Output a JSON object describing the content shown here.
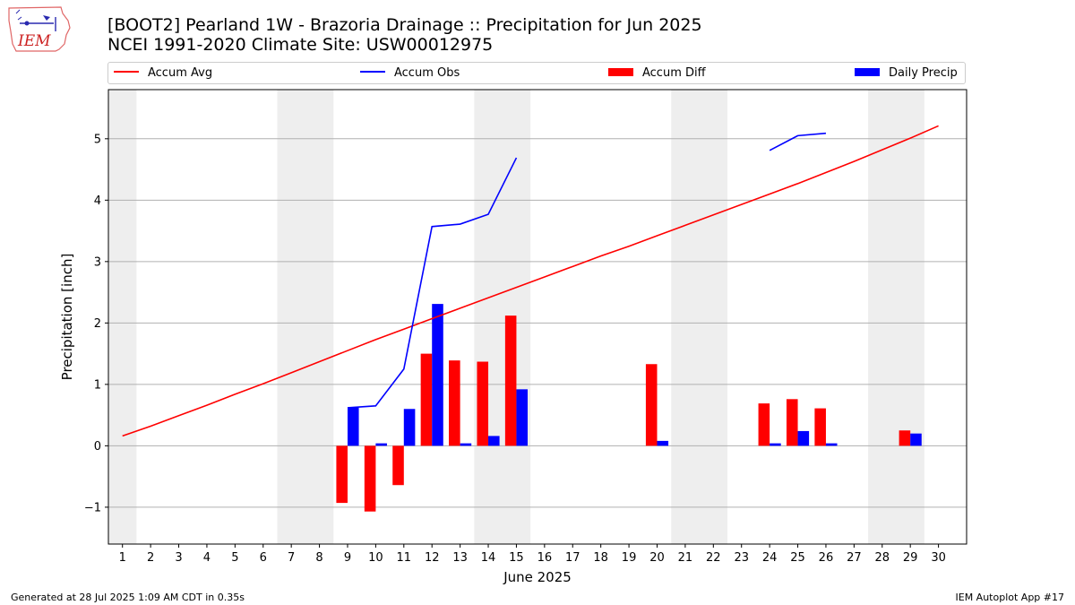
{
  "header": {
    "title_line1": "[BOOT2] Pearland 1W - Brazoria Drainage :: Precipitation for Jun 2025",
    "title_line2": "NCEI 1991-2020 Climate Site: USW00012975",
    "logo_text": "IEM"
  },
  "footer": {
    "generated": "Generated at 28 Jul 2025 1:09 AM CDT in 0.35s",
    "app": "IEM Autoplot App #17"
  },
  "colors": {
    "avg": "#ff0000",
    "obs": "#0000ff",
    "diff": "#ff0000",
    "daily": "#0000ff",
    "weekend_shade": "#eeeeee",
    "grid": "#b0b0b0"
  },
  "chart_data": {
    "type": "bar",
    "xlabel": "June 2025",
    "ylabel": "Precipitation [inch]",
    "xlim": [
      0.5,
      31
    ],
    "ylim": [
      -1.6,
      5.8
    ],
    "yticks": [
      -1,
      0,
      1,
      2,
      3,
      4,
      5
    ],
    "ytick_labels": [
      "−1",
      "0",
      "1",
      "2",
      "3",
      "4",
      "5"
    ],
    "days": [
      1,
      2,
      3,
      4,
      5,
      6,
      7,
      8,
      9,
      10,
      11,
      12,
      13,
      14,
      15,
      16,
      17,
      18,
      19,
      20,
      21,
      22,
      23,
      24,
      25,
      26,
      27,
      28,
      29,
      30
    ],
    "grid": "horizontal",
    "legend_position": "top",
    "shaded_weekend_spans": [
      [
        0.5,
        1.5
      ],
      [
        6.5,
        8.5
      ],
      [
        13.5,
        15.5
      ],
      [
        20.5,
        22.5
      ],
      [
        27.5,
        29.5
      ]
    ],
    "series": [
      {
        "name": "Accum Avg",
        "kind": "line",
        "x": [
          1,
          2,
          3,
          4,
          5,
          6,
          7,
          8,
          9,
          10,
          11,
          12,
          13,
          14,
          15,
          16,
          17,
          18,
          19,
          20,
          21,
          22,
          23,
          24,
          25,
          26,
          27,
          28,
          29,
          30
        ],
        "values": [
          0.16,
          0.32,
          0.49,
          0.66,
          0.84,
          1.01,
          1.19,
          1.37,
          1.55,
          1.73,
          1.9,
          2.07,
          2.24,
          2.41,
          2.58,
          2.75,
          2.92,
          3.09,
          3.25,
          3.42,
          3.59,
          3.76,
          3.93,
          4.1,
          4.27,
          4.45,
          4.63,
          4.82,
          5.01,
          5.21
        ]
      },
      {
        "name": "Accum Obs",
        "kind": "line",
        "segments": [
          {
            "x": [
              9,
              10,
              11,
              12,
              13,
              14,
              15
            ],
            "values": [
              0.62,
              0.65,
              1.25,
              3.57,
              3.61,
              3.77,
              4.69
            ]
          },
          {
            "x": [
              24,
              25,
              26
            ],
            "values": [
              4.81,
              5.05,
              5.09
            ]
          }
        ]
      },
      {
        "name": "Accum Diff",
        "kind": "bar",
        "x": [
          9,
          10,
          11,
          12,
          13,
          14,
          15,
          20,
          24,
          25,
          26,
          29
        ],
        "values": [
          -0.93,
          -1.07,
          -0.64,
          1.5,
          1.39,
          1.37,
          2.12,
          1.33,
          0.69,
          0.76,
          0.61,
          0.25
        ]
      },
      {
        "name": "Daily Precip",
        "kind": "bar",
        "x": [
          9,
          10,
          11,
          12,
          13,
          14,
          15,
          20,
          24,
          25,
          26,
          29
        ],
        "values": [
          0.62,
          0.04,
          0.6,
          2.31,
          0.04,
          0.16,
          0.92,
          0.08,
          0.04,
          0.24,
          0.04,
          0.2
        ]
      }
    ]
  }
}
